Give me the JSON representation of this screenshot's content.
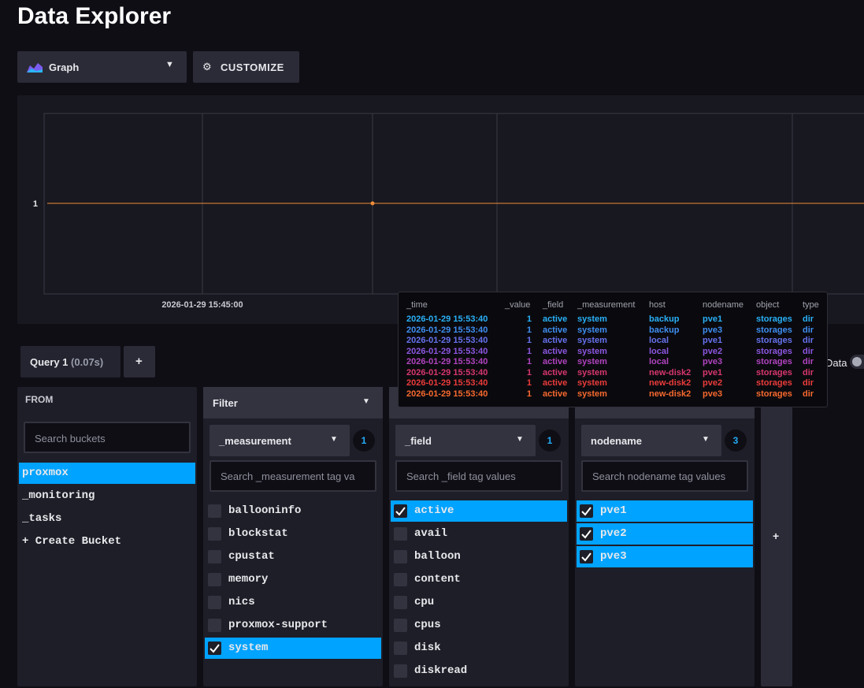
{
  "header": {
    "title": "Data Explorer"
  },
  "toolbar": {
    "view": "Graph",
    "customize": "CUSTOMIZE"
  },
  "graph": {
    "yticks": [
      1
    ],
    "xticks": [
      "2026-01-29 15:45:00"
    ],
    "line_color": "#f08c38"
  },
  "tooltip": {
    "columns": [
      "_time",
      "_value",
      "_field",
      "_measurement",
      "host",
      "nodename",
      "object",
      "type"
    ],
    "colors": [
      "#29b0f7",
      "#3f8ef1",
      "#6672ee",
      "#8c56e0",
      "#b043bf",
      "#d8366d",
      "#ec3b3b",
      "#f8692e"
    ],
    "rows": [
      [
        "2026-01-29 15:53:40",
        1,
        "active",
        "system",
        "backup",
        "pve1",
        "storages",
        "dir"
      ],
      [
        "2026-01-29 15:53:40",
        1,
        "active",
        "system",
        "backup",
        "pve3",
        "storages",
        "dir"
      ],
      [
        "2026-01-29 15:53:40",
        1,
        "active",
        "system",
        "local",
        "pve1",
        "storages",
        "dir"
      ],
      [
        "2026-01-29 15:53:40",
        1,
        "active",
        "system",
        "local",
        "pve2",
        "storages",
        "dir"
      ],
      [
        "2026-01-29 15:53:40",
        1,
        "active",
        "system",
        "local",
        "pve3",
        "storages",
        "dir"
      ],
      [
        "2026-01-29 15:53:40",
        1,
        "active",
        "system",
        "new-disk2",
        "pve1",
        "storages",
        "dir"
      ],
      [
        "2026-01-29 15:53:40",
        1,
        "active",
        "system",
        "new-disk2",
        "pve2",
        "storages",
        "dir"
      ],
      [
        "2026-01-29 15:53:40",
        1,
        "active",
        "system",
        "new-disk2",
        "pve3",
        "storages",
        "dir"
      ]
    ]
  },
  "query": {
    "tab": "Query 1",
    "time": "(0.07s)",
    "add": "+"
  },
  "raw_toggle": "Data",
  "from": {
    "label": "FROM",
    "search": "Search buckets",
    "buckets": [
      "proxmox",
      "_monitoring",
      "_tasks"
    ],
    "selected": 0,
    "create": "+ Create Bucket"
  },
  "filter_label": "Filter",
  "filters": [
    {
      "key": "_measurement",
      "count": 1,
      "search": "Search _measurement tag va",
      "values": [
        "ballooninfo",
        "blockstat",
        "cpustat",
        "memory",
        "nics",
        "proxmox-support",
        "system"
      ],
      "checked": [
        6
      ]
    },
    {
      "key": "_field",
      "count": 1,
      "search": "Search _field tag values",
      "values": [
        "active",
        "avail",
        "balloon",
        "content",
        "cpu",
        "cpus",
        "disk",
        "diskread"
      ],
      "checked": [
        0
      ]
    },
    {
      "key": "nodename",
      "count": 3,
      "search": "Search nodename tag values",
      "values": [
        "pve1",
        "pve2",
        "pve3"
      ],
      "checked": [
        0,
        1,
        2
      ]
    }
  ],
  "add_column": "+"
}
